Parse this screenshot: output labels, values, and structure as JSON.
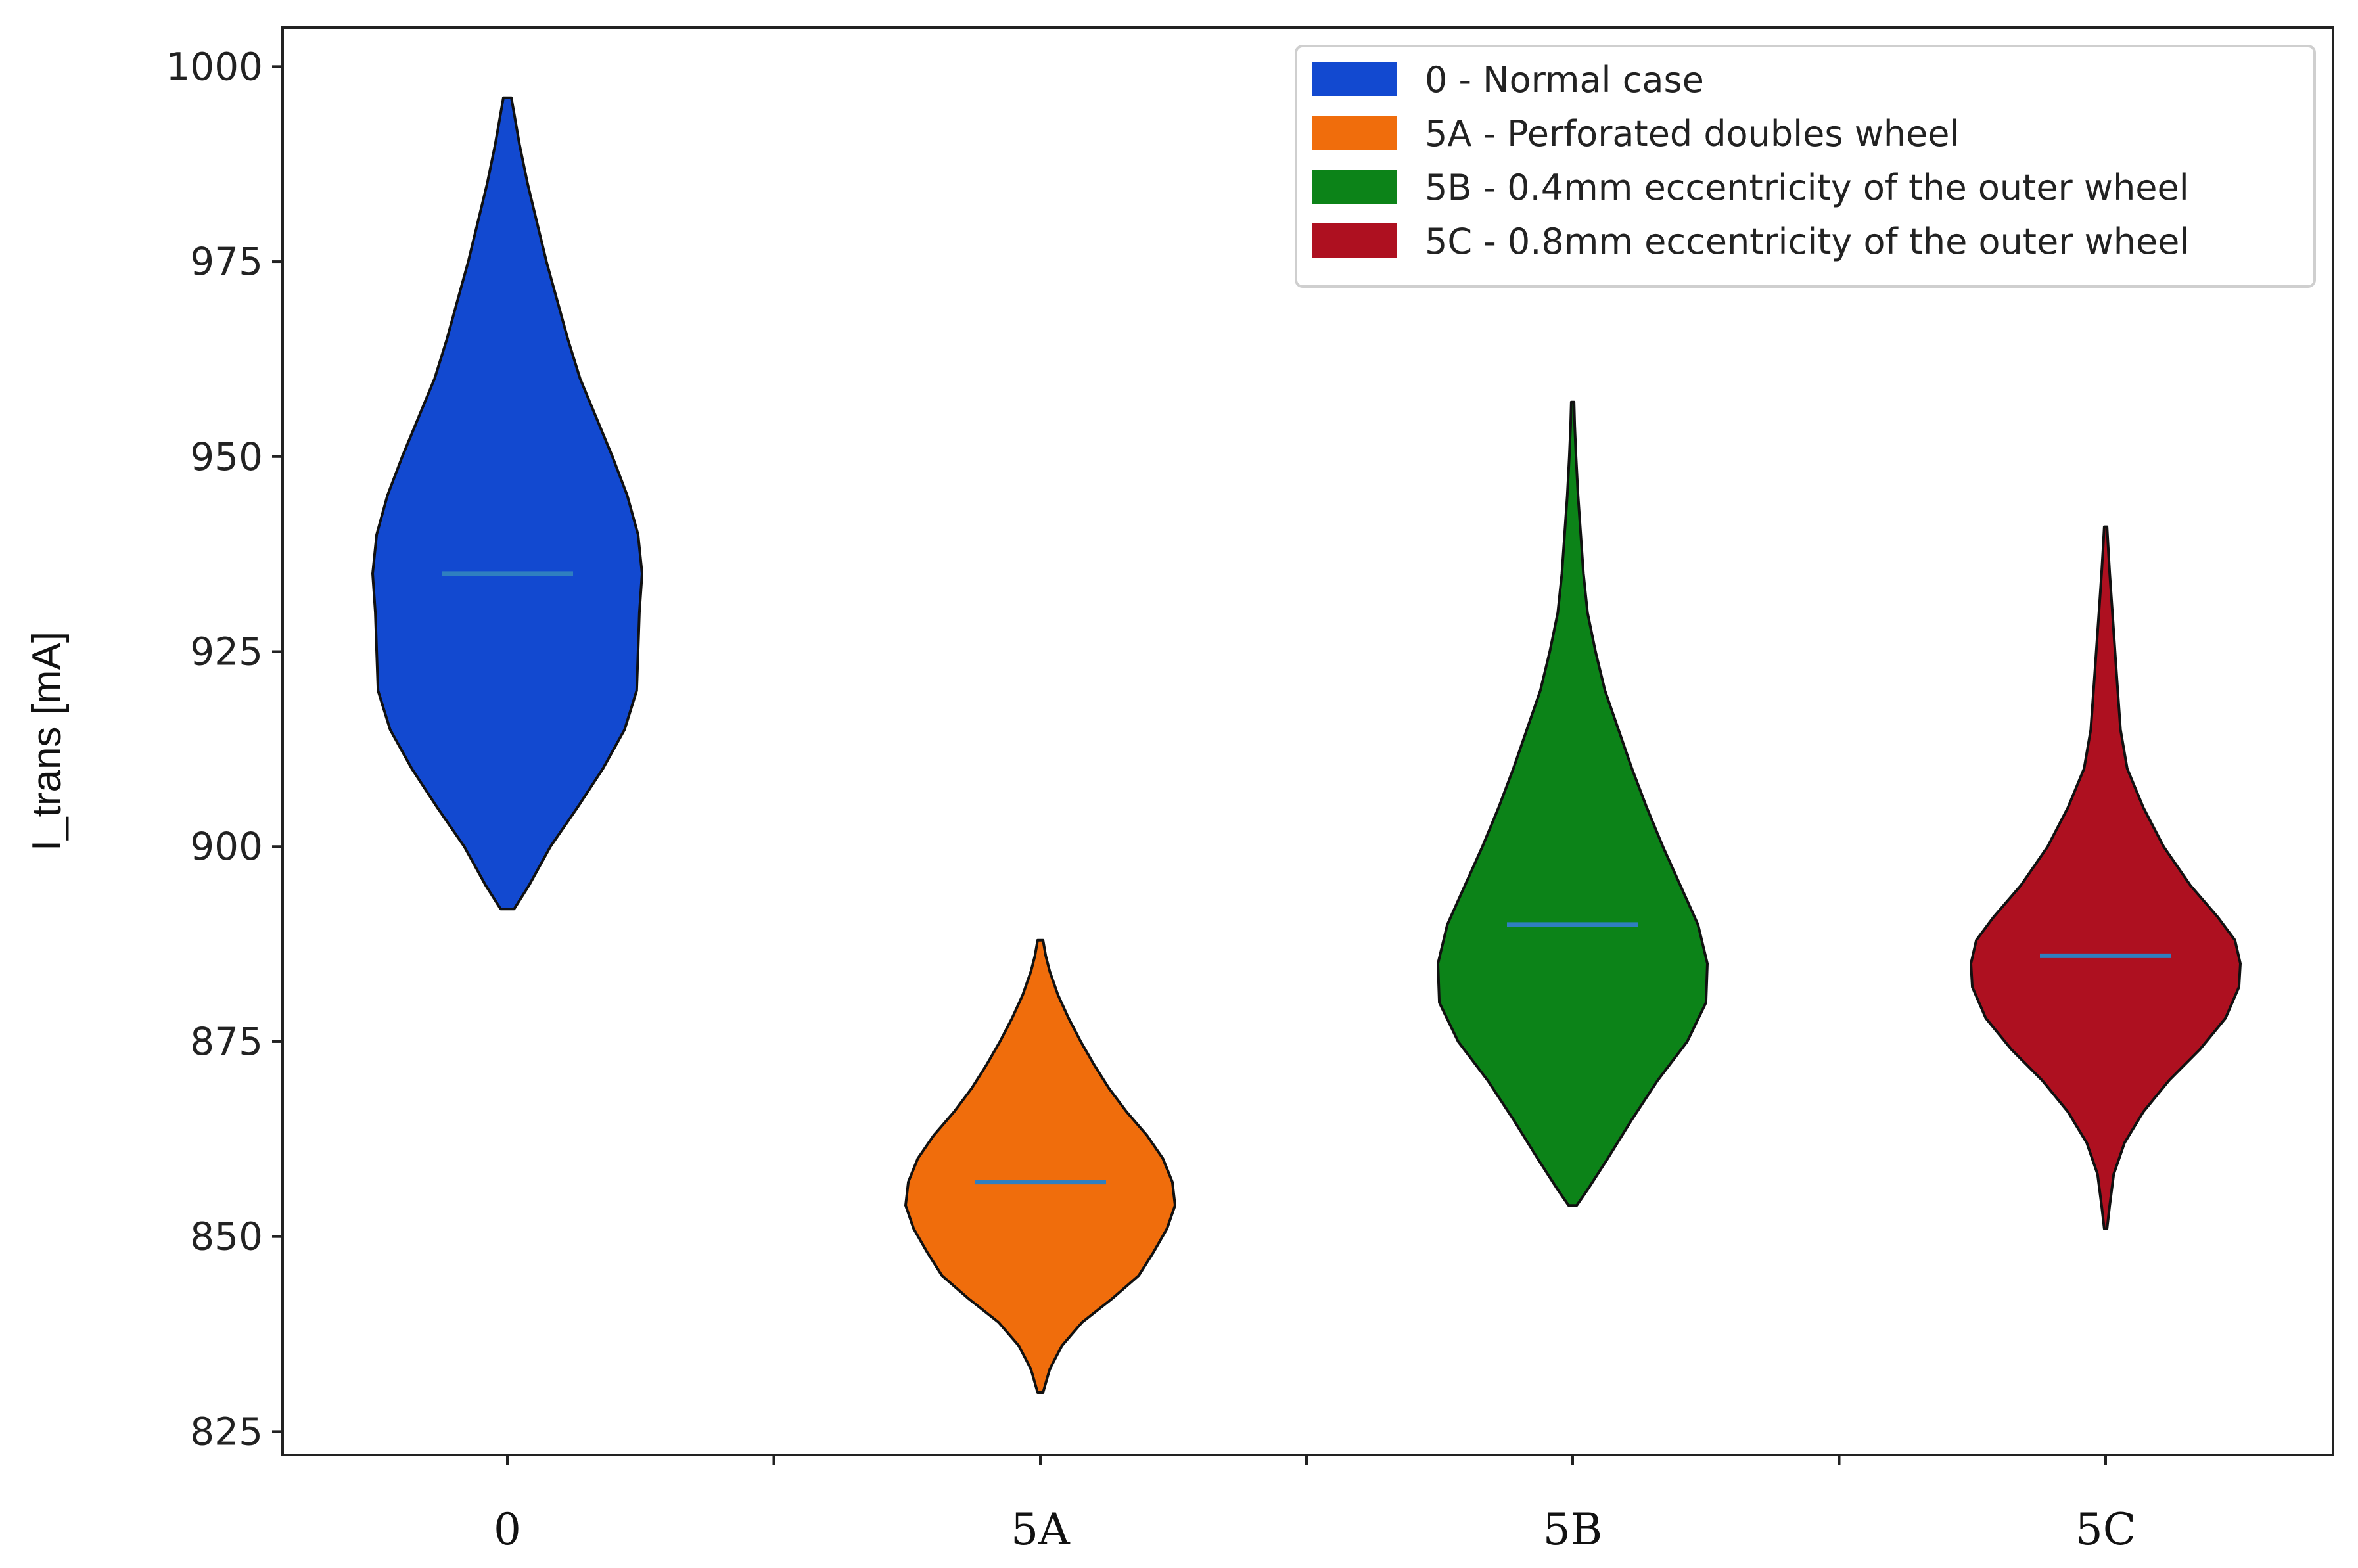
{
  "chart_data": {
    "type": "violin",
    "title": "",
    "xlabel": "",
    "ylabel": "I_trans [mA]",
    "ylim": [
      822,
      1005
    ],
    "yticks": [
      825,
      850,
      875,
      900,
      925,
      950,
      975,
      1000
    ],
    "categories": [
      "0",
      "5A",
      "5B",
      "5C"
    ],
    "series": [
      {
        "name": "0 - Normal case",
        "category": "0",
        "color": "#1249d0",
        "min": 892,
        "max": 996,
        "mean": 935,
        "profile": [
          [
            892,
            0.05
          ],
          [
            895,
            0.16
          ],
          [
            900,
            0.32
          ],
          [
            905,
            0.52
          ],
          [
            910,
            0.71
          ],
          [
            915,
            0.87
          ],
          [
            920,
            0.96
          ],
          [
            925,
            0.97
          ],
          [
            930,
            0.98
          ],
          [
            935,
            1.0
          ],
          [
            940,
            0.97
          ],
          [
            945,
            0.89
          ],
          [
            950,
            0.78
          ],
          [
            955,
            0.66
          ],
          [
            960,
            0.54
          ],
          [
            965,
            0.45
          ],
          [
            970,
            0.37
          ],
          [
            975,
            0.29
          ],
          [
            980,
            0.22
          ],
          [
            985,
            0.15
          ],
          [
            990,
            0.09
          ],
          [
            994,
            0.05
          ],
          [
            996,
            0.03
          ]
        ]
      },
      {
        "name": "5A - Perforated doubles wheel",
        "category": "5A",
        "color": "#f06d0c",
        "min": 830,
        "max": 888,
        "mean": 857,
        "profile": [
          [
            830,
            0.02
          ],
          [
            833,
            0.07
          ],
          [
            836,
            0.16
          ],
          [
            839,
            0.31
          ],
          [
            842,
            0.53
          ],
          [
            845,
            0.73
          ],
          [
            848,
            0.84
          ],
          [
            851,
            0.94
          ],
          [
            854,
            1.0
          ],
          [
            857,
            0.98
          ],
          [
            860,
            0.91
          ],
          [
            863,
            0.79
          ],
          [
            866,
            0.64
          ],
          [
            869,
            0.51
          ],
          [
            872,
            0.4
          ],
          [
            875,
            0.3
          ],
          [
            878,
            0.21
          ],
          [
            881,
            0.13
          ],
          [
            884,
            0.07
          ],
          [
            886,
            0.04
          ],
          [
            888,
            0.02
          ]
        ]
      },
      {
        "name": "5B - 0.4mm eccentricity of the outer wheel",
        "category": "5B",
        "color": "#0c8318",
        "min": 854,
        "max": 957,
        "mean": 890,
        "profile": [
          [
            854,
            0.03
          ],
          [
            856,
            0.11
          ],
          [
            860,
            0.26
          ],
          [
            865,
            0.44
          ],
          [
            870,
            0.63
          ],
          [
            875,
            0.85
          ],
          [
            880,
            0.99
          ],
          [
            885,
            1.0
          ],
          [
            890,
            0.93
          ],
          [
            895,
            0.8
          ],
          [
            900,
            0.67
          ],
          [
            905,
            0.55
          ],
          [
            910,
            0.44
          ],
          [
            915,
            0.34
          ],
          [
            920,
            0.24
          ],
          [
            925,
            0.17
          ],
          [
            930,
            0.11
          ],
          [
            935,
            0.08
          ],
          [
            940,
            0.06
          ],
          [
            945,
            0.04
          ],
          [
            950,
            0.025
          ],
          [
            954,
            0.015
          ],
          [
            957,
            0.01
          ]
        ]
      },
      {
        "name": "5C - 0.8mm eccentricity of the outer wheel",
        "category": "5C",
        "color": "#ae1020",
        "min": 851,
        "max": 941,
        "mean": 886,
        "profile": [
          [
            851,
            0.01
          ],
          [
            854,
            0.03
          ],
          [
            858,
            0.06
          ],
          [
            862,
            0.14
          ],
          [
            866,
            0.28
          ],
          [
            870,
            0.47
          ],
          [
            874,
            0.7
          ],
          [
            878,
            0.89
          ],
          [
            882,
            0.99
          ],
          [
            885,
            1.0
          ],
          [
            888,
            0.96
          ],
          [
            891,
            0.83
          ],
          [
            895,
            0.63
          ],
          [
            900,
            0.43
          ],
          [
            905,
            0.28
          ],
          [
            910,
            0.16
          ],
          [
            915,
            0.11
          ],
          [
            920,
            0.09
          ],
          [
            925,
            0.07
          ],
          [
            930,
            0.05
          ],
          [
            935,
            0.03
          ],
          [
            938,
            0.02
          ],
          [
            941,
            0.01
          ]
        ]
      }
    ],
    "mean_line_color": "#2f7fc0",
    "legend_position": "top-right"
  }
}
